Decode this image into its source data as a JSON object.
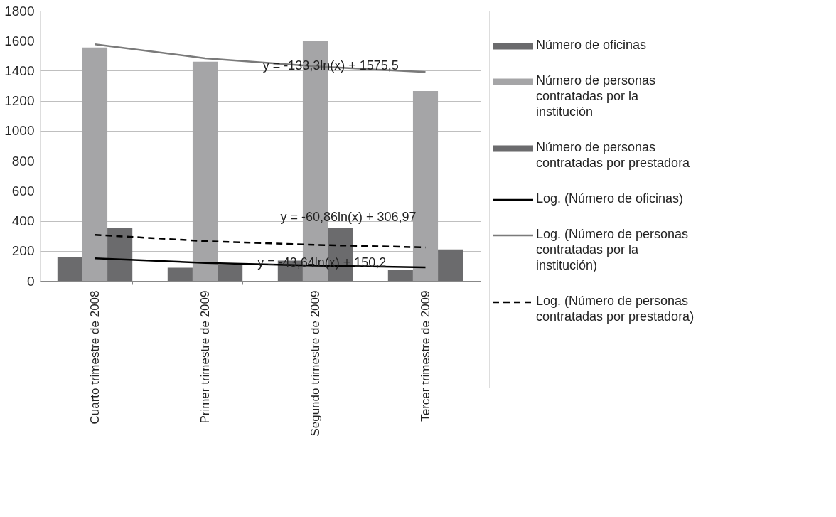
{
  "chart_data": {
    "type": "bar",
    "categories": [
      "Cuarto trimestre de 2008",
      "Primer trimestre de 2009",
      "Segundo trimestre de 2009",
      "Tercer trimestre de 2009"
    ],
    "series": [
      {
        "name": "Número de oficinas",
        "color": "#6b6b6d",
        "values": [
          160,
          88,
          135,
          75
        ]
      },
      {
        "name": "Número de personas contratadas por la institución",
        "color": "#a5a5a7",
        "values": [
          1555,
          1460,
          1600,
          1265
        ]
      },
      {
        "name": "Número de personas contratadas por prestadora",
        "color": "#6b6b6d",
        "values": [
          355,
          110,
          350,
          210
        ]
      },
      {
        "name": "Log. (Número de oficinas)",
        "type": "line",
        "color": "#000000",
        "line_style": "solid",
        "values": [
          150,
          120,
          102,
          90
        ]
      },
      {
        "name": "Log. (Número de personas contratadas por la institución)",
        "type": "line",
        "color": "#7a7a7a",
        "line_style": "solid",
        "values": [
          1576,
          1483,
          1429,
          1391
        ]
      },
      {
        "name": "Log. (Número de personas contratadas por prestadora)",
        "type": "line",
        "color": "#000000",
        "line_style": "dashed",
        "values": [
          307,
          265,
          240,
          223
        ]
      }
    ],
    "annotations": [
      "y = -133,3ln(x) + 1575,5",
      "y = -60,86ln(x) + 306,97",
      "y = -43,64ln(x) + 150,2"
    ],
    "ylim": [
      0,
      1800
    ],
    "yticks": [
      0,
      200,
      400,
      600,
      800,
      1000,
      1200,
      1400,
      1600,
      1800
    ],
    "grid": "y",
    "legend": "right",
    "marker": "none"
  }
}
